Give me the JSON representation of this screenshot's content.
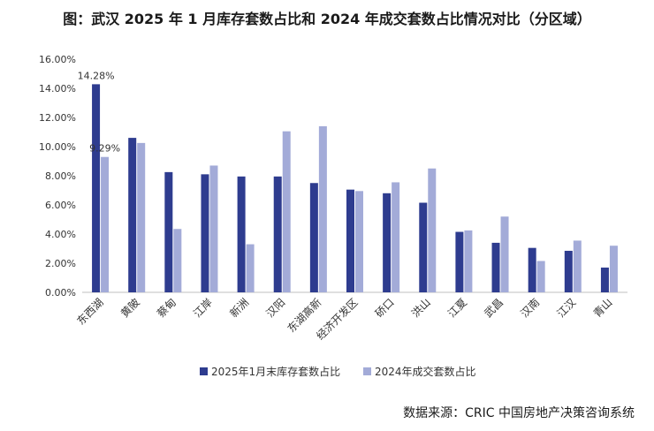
{
  "chart_data": {
    "type": "bar",
    "title": "图：武汉 2025 年 1 月库存套数占比和 2024 年成交套数占比情况对比（分区域）",
    "categories": [
      "东西湖",
      "黄陂",
      "蔡甸",
      "江岸",
      "新洲",
      "汉阳",
      "东湖高新",
      "经济开发区",
      "硚口",
      "洪山",
      "江夏",
      "武昌",
      "汉南",
      "江汉",
      "青山"
    ],
    "series": [
      {
        "name": "2025年1月末库存套数占比",
        "color": "#2e3c8f",
        "values": [
          14.28,
          10.6,
          8.25,
          8.1,
          7.95,
          7.95,
          7.5,
          7.05,
          6.8,
          6.15,
          4.15,
          3.4,
          3.05,
          2.85,
          1.7
        ]
      },
      {
        "name": "2024年成交套数占比",
        "color": "#a3abd8",
        "values": [
          9.29,
          10.25,
          4.35,
          8.7,
          3.3,
          11.05,
          11.4,
          6.95,
          7.55,
          8.5,
          4.25,
          5.2,
          2.15,
          3.55,
          3.2
        ]
      }
    ],
    "ylim": [
      0,
      16
    ],
    "yticks": [
      "0.00%",
      "2.00%",
      "4.00%",
      "6.00%",
      "8.00%",
      "10.00%",
      "12.00%",
      "14.00%",
      "16.00%"
    ],
    "data_labels": [
      {
        "series": 0,
        "index": 0,
        "text": "14.28%"
      },
      {
        "series": 1,
        "index": 0,
        "text": "9.29%"
      }
    ],
    "legend_position": "bottom",
    "grid": false
  },
  "source": "数据来源：CRIC 中国房地产决策咨询系统"
}
